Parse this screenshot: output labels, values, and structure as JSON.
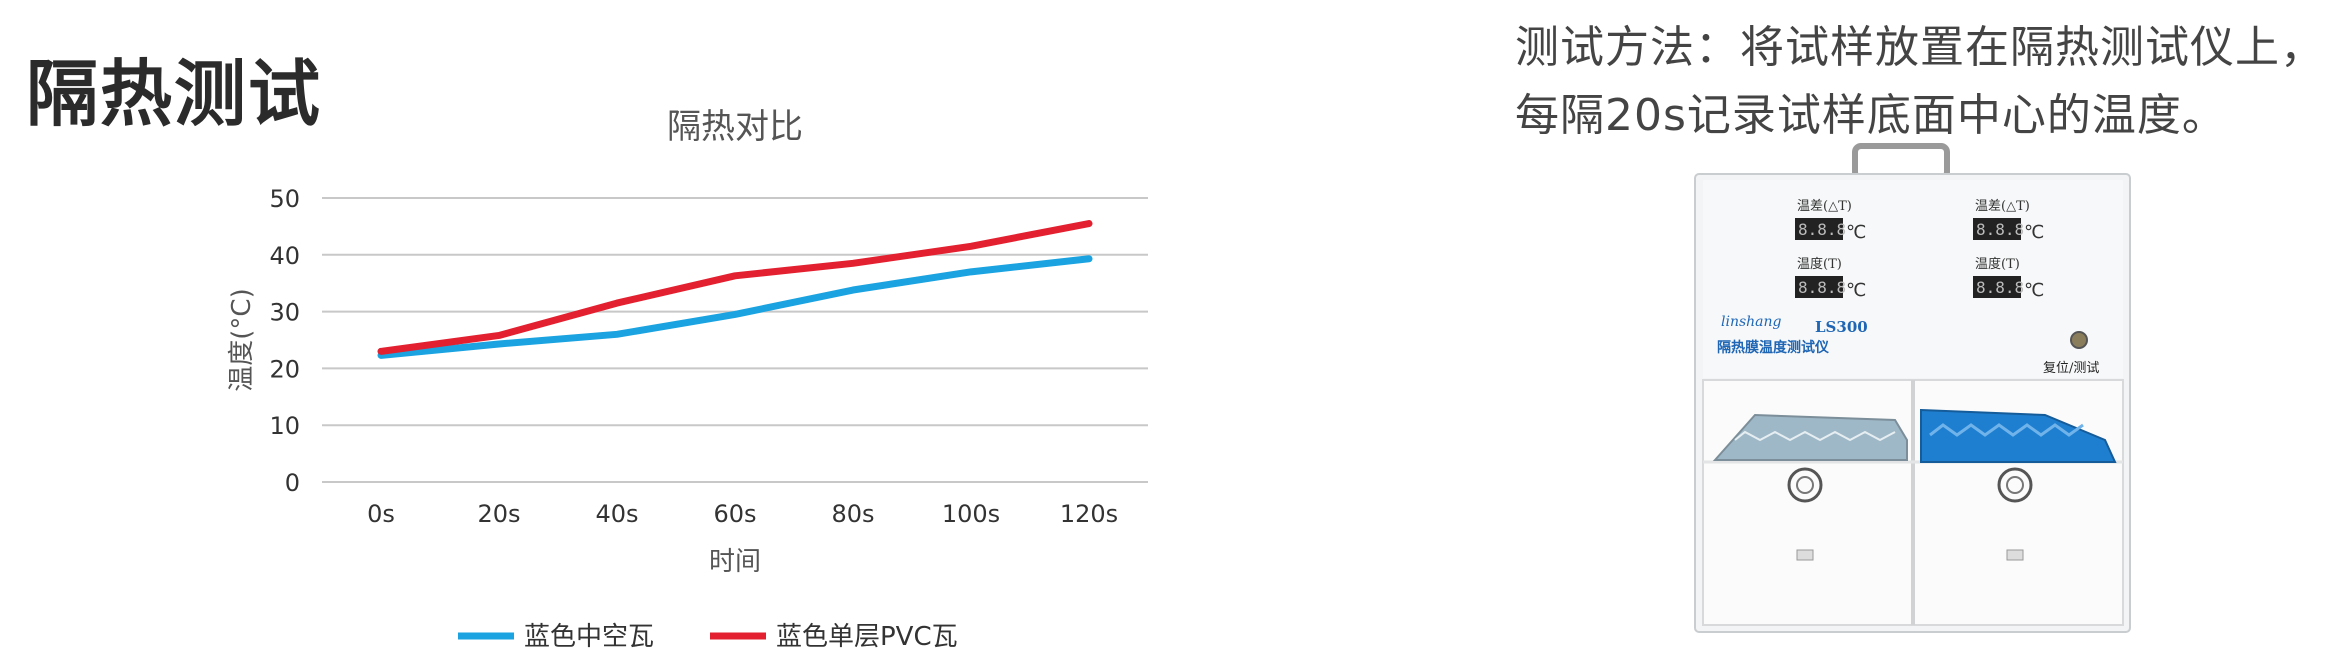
{
  "heading": "隔热测试",
  "description": {
    "line1": "测试方法：将试样放置在隔热测试仪上，",
    "line2": "每隔20s记录试样底面中心的温度。"
  },
  "device": {
    "label_temp_diff": "温差(△T)",
    "label_temp": "温度(T)",
    "display_text": "8.8.8",
    "unit": "℃",
    "brand": "linshang",
    "model": "LS300",
    "name": "隔热膜温度测试仪",
    "reset_label": "复位/测试"
  },
  "chart_data": {
    "type": "line",
    "title": "隔热对比",
    "xlabel": "时间",
    "ylabel": "温度(°C)",
    "categories": [
      "0s",
      "20s",
      "40s",
      "60s",
      "80s",
      "100s",
      "120s"
    ],
    "ylim": [
      0,
      50
    ],
    "yticks": [
      0,
      10,
      20,
      30,
      40,
      50
    ],
    "grid": true,
    "legend_position": "bottom",
    "series": [
      {
        "name": "蓝色中空瓦",
        "color": "#1aa3e0",
        "values": [
          22.3,
          24.3,
          26.0,
          29.5,
          33.8,
          37.0,
          39.3
        ]
      },
      {
        "name": "蓝色单层PVC瓦",
        "color": "#e2202f",
        "values": [
          23.0,
          25.8,
          31.5,
          36.3,
          38.5,
          41.5,
          45.5
        ]
      }
    ]
  }
}
